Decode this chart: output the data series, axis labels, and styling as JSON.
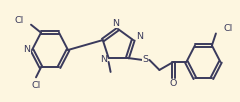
{
  "bg_color": "#fdf6e0",
  "line_color": "#3a3a5c",
  "line_width": 1.4,
  "font_size": 6.8,
  "figsize": [
    2.4,
    1.02
  ],
  "dpi": 100,
  "xlim": [
    0,
    240
  ],
  "ylim": [
    0,
    102
  ]
}
